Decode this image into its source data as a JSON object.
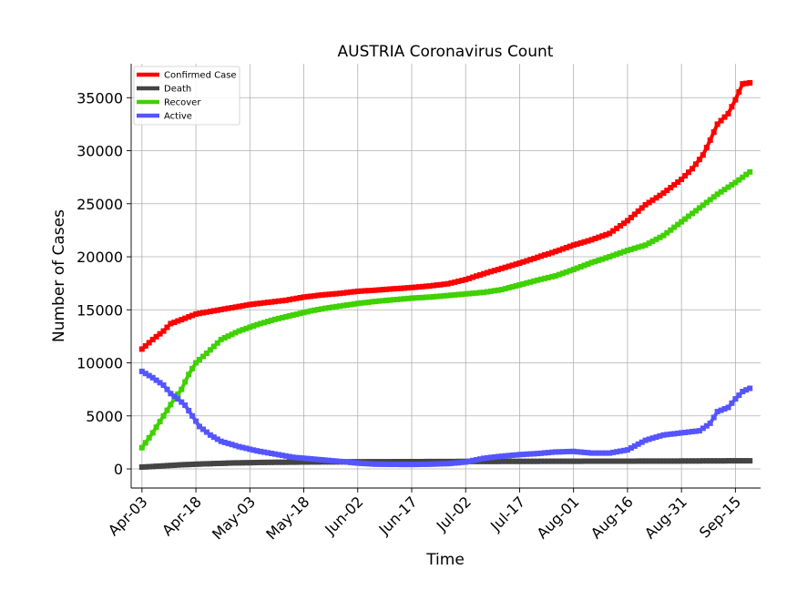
{
  "chart_data": {
    "type": "line",
    "title": "AUSTRIA Coronavirus Count",
    "xlabel": "Time",
    "ylabel": "Number of Cases",
    "x_start": "2020-04-03",
    "x_end": "2020-09-19",
    "xlim": [
      "2020-03-31",
      "2020-09-22"
    ],
    "ylim": [
      -1800,
      38200
    ],
    "y_ticks": [
      0,
      5000,
      10000,
      15000,
      20000,
      25000,
      30000,
      35000
    ],
    "x_ticks": [
      {
        "label": "Apr-03",
        "date": "2020-04-03"
      },
      {
        "label": "Apr-18",
        "date": "2020-04-18"
      },
      {
        "label": "May-03",
        "date": "2020-05-03"
      },
      {
        "label": "May-18",
        "date": "2020-05-18"
      },
      {
        "label": "Jun-02",
        "date": "2020-06-02"
      },
      {
        "label": "Jun-17",
        "date": "2020-06-17"
      },
      {
        "label": "Jul-02",
        "date": "2020-07-02"
      },
      {
        "label": "Jul-17",
        "date": "2020-07-17"
      },
      {
        "label": "Aug-01",
        "date": "2020-08-01"
      },
      {
        "label": "Aug-16",
        "date": "2020-08-16"
      },
      {
        "label": "Aug-31",
        "date": "2020-08-31"
      },
      {
        "label": "Sep-15",
        "date": "2020-09-15"
      }
    ],
    "grid": true,
    "legend_position": "top-left",
    "series": [
      {
        "name": "Confirmed Case",
        "color": "#ff0000",
        "points": [
          [
            "2020-04-03",
            11300
          ],
          [
            "2020-04-06",
            12200
          ],
          [
            "2020-04-09",
            13000
          ],
          [
            "2020-04-11",
            13700
          ],
          [
            "2020-04-15",
            14200
          ],
          [
            "2020-04-18",
            14600
          ],
          [
            "2020-04-23",
            14900
          ],
          [
            "2020-04-28",
            15200
          ],
          [
            "2020-05-03",
            15500
          ],
          [
            "2020-05-08",
            15700
          ],
          [
            "2020-05-13",
            15900
          ],
          [
            "2020-05-18",
            16200
          ],
          [
            "2020-05-23",
            16400
          ],
          [
            "2020-05-28",
            16550
          ],
          [
            "2020-06-02",
            16750
          ],
          [
            "2020-06-07",
            16850
          ],
          [
            "2020-06-12",
            16980
          ],
          [
            "2020-06-17",
            17100
          ],
          [
            "2020-06-22",
            17250
          ],
          [
            "2020-06-27",
            17450
          ],
          [
            "2020-07-02",
            17850
          ],
          [
            "2020-07-07",
            18400
          ],
          [
            "2020-07-12",
            18900
          ],
          [
            "2020-07-17",
            19400
          ],
          [
            "2020-07-22",
            19950
          ],
          [
            "2020-07-27",
            20500
          ],
          [
            "2020-08-01",
            21100
          ],
          [
            "2020-08-06",
            21600
          ],
          [
            "2020-08-11",
            22200
          ],
          [
            "2020-08-16",
            23400
          ],
          [
            "2020-08-21",
            24900
          ],
          [
            "2020-08-26",
            26000
          ],
          [
            "2020-08-31",
            27300
          ],
          [
            "2020-09-03",
            28300
          ],
          [
            "2020-09-06",
            29600
          ],
          [
            "2020-09-08",
            31000
          ],
          [
            "2020-09-10",
            32500
          ],
          [
            "2020-09-13",
            33500
          ],
          [
            "2020-09-15",
            34800
          ],
          [
            "2020-09-17",
            36300
          ],
          [
            "2020-09-19",
            36400
          ]
        ]
      },
      {
        "name": "Death",
        "color": "#444444",
        "points": [
          [
            "2020-04-03",
            170
          ],
          [
            "2020-04-08",
            270
          ],
          [
            "2020-04-13",
            370
          ],
          [
            "2020-04-18",
            450
          ],
          [
            "2020-04-28",
            560
          ],
          [
            "2020-05-08",
            620
          ],
          [
            "2020-05-23",
            660
          ],
          [
            "2020-06-07",
            680
          ],
          [
            "2020-06-27",
            700
          ],
          [
            "2020-07-17",
            715
          ],
          [
            "2020-08-06",
            730
          ],
          [
            "2020-08-26",
            740
          ],
          [
            "2020-09-19",
            770
          ]
        ]
      },
      {
        "name": "Recover",
        "color": "#3fd100",
        "points": [
          [
            "2020-04-03",
            2000
          ],
          [
            "2020-04-06",
            3400
          ],
          [
            "2020-04-09",
            5000
          ],
          [
            "2020-04-12",
            6600
          ],
          [
            "2020-04-14",
            7500
          ],
          [
            "2020-04-16",
            8900
          ],
          [
            "2020-04-18",
            10000
          ],
          [
            "2020-04-21",
            10900
          ],
          [
            "2020-04-25",
            12200
          ],
          [
            "2020-04-30",
            13000
          ],
          [
            "2020-05-05",
            13600
          ],
          [
            "2020-05-10",
            14100
          ],
          [
            "2020-05-15",
            14500
          ],
          [
            "2020-05-20",
            14900
          ],
          [
            "2020-05-25",
            15200
          ],
          [
            "2020-06-02",
            15600
          ],
          [
            "2020-06-07",
            15800
          ],
          [
            "2020-06-12",
            15950
          ],
          [
            "2020-06-17",
            16100
          ],
          [
            "2020-06-22",
            16200
          ],
          [
            "2020-06-27",
            16350
          ],
          [
            "2020-07-02",
            16500
          ],
          [
            "2020-07-07",
            16650
          ],
          [
            "2020-07-12",
            16900
          ],
          [
            "2020-07-17",
            17350
          ],
          [
            "2020-07-22",
            17800
          ],
          [
            "2020-07-27",
            18200
          ],
          [
            "2020-08-01",
            18800
          ],
          [
            "2020-08-06",
            19450
          ],
          [
            "2020-08-11",
            20000
          ],
          [
            "2020-08-16",
            20600
          ],
          [
            "2020-08-21",
            21100
          ],
          [
            "2020-08-26",
            22000
          ],
          [
            "2020-08-31",
            23300
          ],
          [
            "2020-09-05",
            24600
          ],
          [
            "2020-09-10",
            25900
          ],
          [
            "2020-09-15",
            27000
          ],
          [
            "2020-09-19",
            28000
          ]
        ]
      },
      {
        "name": "Active",
        "color": "#5555ff",
        "points": [
          [
            "2020-04-03",
            9200
          ],
          [
            "2020-04-06",
            8600
          ],
          [
            "2020-04-09",
            7900
          ],
          [
            "2020-04-11",
            7100
          ],
          [
            "2020-04-13",
            6600
          ],
          [
            "2020-04-15",
            6000
          ],
          [
            "2020-04-17",
            5000
          ],
          [
            "2020-04-19",
            4000
          ],
          [
            "2020-04-22",
            3200
          ],
          [
            "2020-04-25",
            2600
          ],
          [
            "2020-04-30",
            2100
          ],
          [
            "2020-05-05",
            1700
          ],
          [
            "2020-05-10",
            1400
          ],
          [
            "2020-05-15",
            1100
          ],
          [
            "2020-05-20",
            950
          ],
          [
            "2020-05-25",
            800
          ],
          [
            "2020-06-02",
            550
          ],
          [
            "2020-06-07",
            450
          ],
          [
            "2020-06-12",
            430
          ],
          [
            "2020-06-17",
            420
          ],
          [
            "2020-06-22",
            450
          ],
          [
            "2020-06-27",
            500
          ],
          [
            "2020-07-02",
            650
          ],
          [
            "2020-07-07",
            1000
          ],
          [
            "2020-07-12",
            1200
          ],
          [
            "2020-07-17",
            1350
          ],
          [
            "2020-07-22",
            1450
          ],
          [
            "2020-07-27",
            1600
          ],
          [
            "2020-08-01",
            1650
          ],
          [
            "2020-08-06",
            1500
          ],
          [
            "2020-08-11",
            1500
          ],
          [
            "2020-08-16",
            1800
          ],
          [
            "2020-08-21",
            2700
          ],
          [
            "2020-08-26",
            3200
          ],
          [
            "2020-08-31",
            3400
          ],
          [
            "2020-09-05",
            3600
          ],
          [
            "2020-09-08",
            4300
          ],
          [
            "2020-09-10",
            5400
          ],
          [
            "2020-09-13",
            5800
          ],
          [
            "2020-09-15",
            6600
          ],
          [
            "2020-09-17",
            7300
          ],
          [
            "2020-09-19",
            7600
          ]
        ]
      }
    ]
  }
}
